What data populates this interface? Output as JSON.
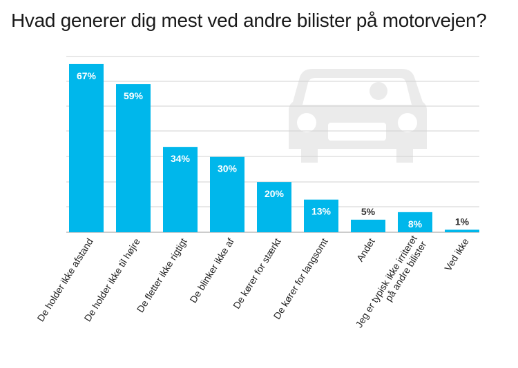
{
  "chart_data": {
    "type": "bar",
    "title": "Hvad generer dig mest ved andre bilister på motorvejen?",
    "xlabel": "",
    "ylabel": "",
    "ylim": [
      0,
      70
    ],
    "grid": true,
    "categories": [
      [
        "De holder ikke afstand"
      ],
      [
        "De holder ikke til højre"
      ],
      [
        "De fletter ikke rigtigt"
      ],
      [
        "De blinker ikke af"
      ],
      [
        "De kører for stærkt"
      ],
      [
        "De kører for langsomt"
      ],
      [
        "Andet"
      ],
      [
        "Jeg er typisk ikke irriteret",
        "på andre bilister"
      ],
      [
        "Ved ikke"
      ]
    ],
    "values": [
      67,
      59,
      34,
      30,
      20,
      13,
      5,
      8,
      1
    ],
    "labels": [
      "67%",
      "59%",
      "34%",
      "30%",
      "20%",
      "13%",
      "5%",
      "8%",
      "1%"
    ],
    "colors": {
      "bar": "#00b7eb",
      "grid": "#d0d0d0",
      "car_icon": "#ebebeb"
    },
    "decoration": "car-icon"
  }
}
